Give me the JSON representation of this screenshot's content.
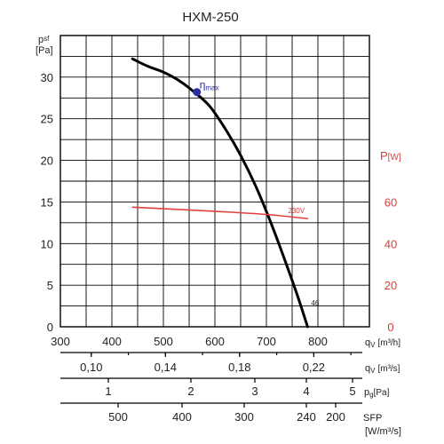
{
  "chart_data": {
    "type": "line",
    "title": "HXM-250",
    "left_axis": {
      "label_main": "p",
      "label_sub": "sf",
      "unit": "[Pa]",
      "ylim": [
        0,
        35
      ],
      "ticks": [
        0,
        5,
        10,
        15,
        20,
        25,
        30
      ],
      "tick_labels": [
        "0",
        "5",
        "10",
        "15",
        "20",
        "25",
        "30"
      ]
    },
    "right_axis": {
      "label_main": "P",
      "unit": "[W]",
      "ylim": [
        0,
        140
      ],
      "ticks": [
        0,
        20,
        40,
        60
      ],
      "tick_labels": [
        "0",
        "20",
        "40",
        "60"
      ],
      "color": "#d6403a"
    },
    "x_axes": [
      {
        "name": "qv_m3h",
        "label": "q",
        "label_sub": "V",
        "unit": "[m³/h]",
        "ticks": [
          300,
          400,
          500,
          600,
          700,
          800
        ],
        "tick_labels": [
          "300",
          "400",
          "500",
          "600",
          "700",
          "800"
        ]
      },
      {
        "name": "qv_m3s",
        "label": "q",
        "label_sub": "V",
        "unit": "[m³/s]",
        "ticks": [
          0.1,
          0.14,
          0.18,
          0.22
        ],
        "tick_labels": [
          "0,10",
          "0,14",
          "0,18",
          "0,22"
        ]
      },
      {
        "name": "pg",
        "label": "p",
        "label_sub": "g",
        "unit": "[Pa]",
        "ticks": [
          1,
          2,
          3,
          4,
          5
        ],
        "tick_labels": [
          "1",
          "2",
          "3",
          "4",
          "5"
        ]
      },
      {
        "name": "sfp",
        "label": "SFP",
        "unit": "[W/m³/s]",
        "ticks": [
          500,
          400,
          300,
          240,
          200
        ],
        "tick_labels": [
          "500",
          "400",
          "300",
          "240",
          "200"
        ]
      }
    ],
    "xlim": [
      300,
      900
    ],
    "grid": true,
    "series": [
      {
        "axis": "left",
        "color": "#000000",
        "x": [
          440,
          470,
          500,
          530,
          560,
          590,
          620,
          650,
          680,
          710,
          740,
          760,
          780
        ],
        "y": [
          32.2,
          31.3,
          30.6,
          29.6,
          28.2,
          26.5,
          23.8,
          20.6,
          16.8,
          12.3,
          7.3,
          3.8,
          0
        ],
        "end_label": "46"
      },
      {
        "axis": "right",
        "name": "230V",
        "color": "#e0403a",
        "x": [
          440,
          600,
          700,
          780
        ],
        "y": [
          57.5,
          55.5,
          54,
          52
        ]
      }
    ],
    "annotations": [
      {
        "text": "η",
        "sub": "max",
        "x": 565,
        "y": 28.2,
        "axis": "left",
        "marker_color": "#2b2ea8"
      }
    ]
  }
}
